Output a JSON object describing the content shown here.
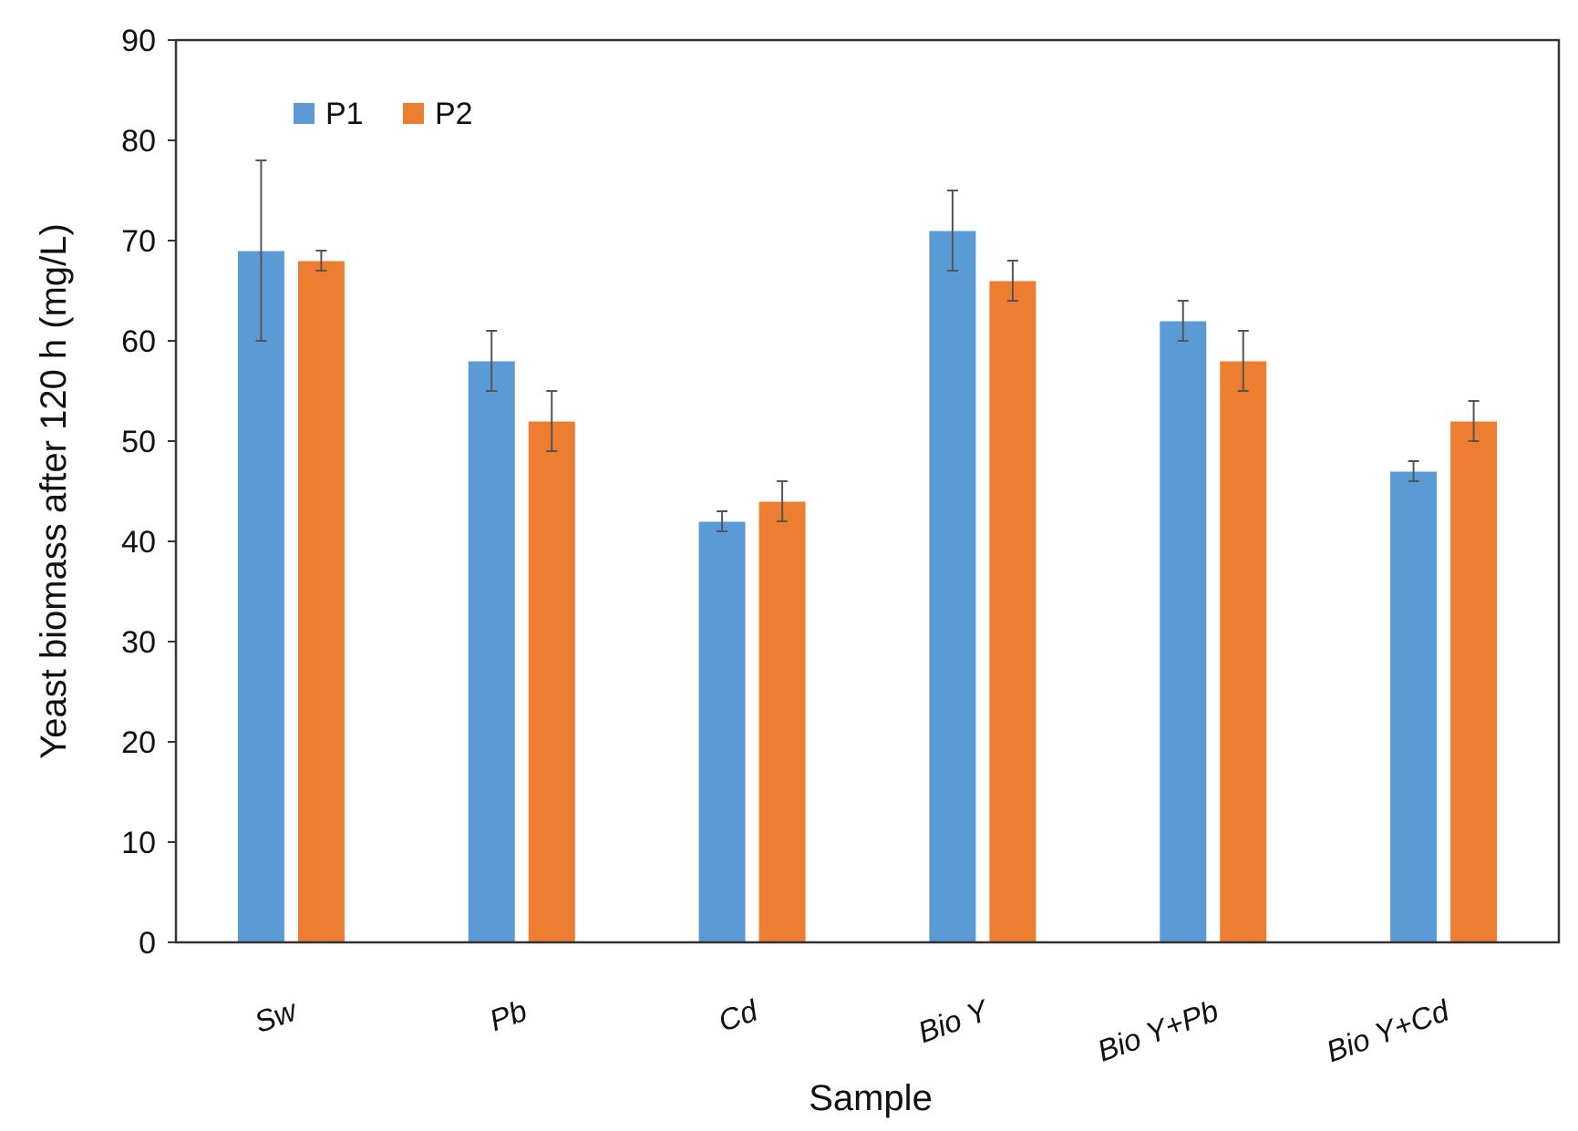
{
  "chart_data": {
    "type": "bar",
    "title": "",
    "xlabel": "Sample",
    "ylabel": "Yeast biomass after 120 h (mg/L)",
    "ylim": [
      0,
      90
    ],
    "yticks": [
      "0",
      "10",
      "20",
      "30",
      "40",
      "50",
      "60",
      "70",
      "80",
      "90"
    ],
    "categories": [
      "Sw",
      "Pb",
      "Cd",
      "Bio Y",
      "Bio Y+Pb",
      "Bio Y+Cd"
    ],
    "series": [
      {
        "name": "P1",
        "color": "#5B9BD5",
        "values": [
          69,
          58,
          42,
          71,
          62,
          47
        ],
        "errors": [
          9,
          3,
          1,
          4,
          2,
          1
        ]
      },
      {
        "name": "P2",
        "color": "#ED7D31",
        "values": [
          68,
          52,
          44,
          66,
          58,
          52
        ],
        "errors": [
          1,
          3,
          2,
          2,
          3,
          2
        ]
      }
    ],
    "legend_position": "top-left",
    "grid": false
  }
}
